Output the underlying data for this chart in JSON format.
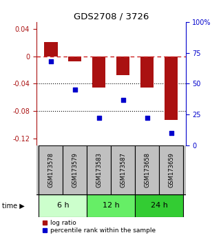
{
  "title": "GDS2708 / 3726",
  "samples": [
    "GSM173578",
    "GSM173579",
    "GSM173583",
    "GSM173587",
    "GSM173658",
    "GSM173659"
  ],
  "log_ratio": [
    0.021,
    -0.008,
    -0.046,
    -0.028,
    -0.046,
    -0.093
  ],
  "percentile_rank": [
    68,
    45,
    22,
    37,
    22,
    10
  ],
  "bar_color": "#aa1111",
  "dot_color": "#0000cc",
  "ylim_left": [
    -0.13,
    0.05
  ],
  "ylim_right": [
    0,
    100
  ],
  "yticks_left": [
    0.04,
    0.0,
    -0.04,
    -0.08,
    -0.12
  ],
  "yticks_right": [
    0,
    25,
    50,
    75,
    100
  ],
  "groups": [
    {
      "label": "6 h",
      "indices": [
        0,
        1
      ],
      "color": "#ccffcc"
    },
    {
      "label": "12 h",
      "indices": [
        2,
        3
      ],
      "color": "#66ee66"
    },
    {
      "label": "24 h",
      "indices": [
        4,
        5
      ],
      "color": "#33cc33"
    }
  ],
  "time_label": "time",
  "legend_log_ratio": "log ratio",
  "legend_percentile": "percentile rank within the sample",
  "hline_y": 0.0,
  "hline_color": "#cc2222",
  "hline_style": "--",
  "dotted_lines": [
    -0.04,
    -0.08
  ],
  "background_color": "#ffffff",
  "plot_bg": "#ffffff",
  "box_color": "#c0c0c0",
  "right_axis_top_label": "100%",
  "bar_width": 0.55
}
